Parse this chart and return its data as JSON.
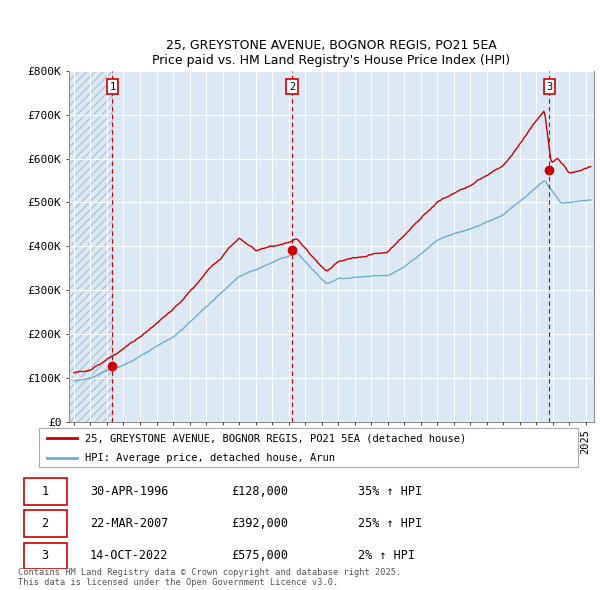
{
  "title_line1": "25, GREYSTONE AVENUE, BOGNOR REGIS, PO21 5EA",
  "title_line2": "Price paid vs. HM Land Registry's House Price Index (HPI)",
  "ylim": [
    0,
    800000
  ],
  "yticks": [
    0,
    100000,
    200000,
    300000,
    400000,
    500000,
    600000,
    700000,
    800000
  ],
  "ytick_labels": [
    "£0",
    "£100K",
    "£200K",
    "£300K",
    "£400K",
    "£500K",
    "£600K",
    "£700K",
    "£800K"
  ],
  "xlim_start": 1993.7,
  "xlim_end": 2025.5,
  "hpi_color": "#6baed6",
  "price_color": "#cc0000",
  "plot_bg_color": "#dce9f5",
  "grid_color": "#ffffff",
  "hatch_color": "#b0c4d8",
  "purchase_dates": [
    1996.33,
    2007.22,
    2022.79
  ],
  "purchase_prices": [
    128000,
    392000,
    575000
  ],
  "purchase_labels": [
    "1",
    "2",
    "3"
  ],
  "legend_line1": "25, GREYSTONE AVENUE, BOGNOR REGIS, PO21 5EA (detached house)",
  "legend_line2": "HPI: Average price, detached house, Arun",
  "table_rows": [
    [
      "1",
      "30-APR-1996",
      "£128,000",
      "35% ↑ HPI"
    ],
    [
      "2",
      "22-MAR-2007",
      "£392,000",
      "25% ↑ HPI"
    ],
    [
      "3",
      "14-OCT-2022",
      "£575,000",
      "2% ↑ HPI"
    ]
  ],
  "footnote": "Contains HM Land Registry data © Crown copyright and database right 2025.\nThis data is licensed under the Open Government Licence v3.0.",
  "bg_color": "#ffffff"
}
